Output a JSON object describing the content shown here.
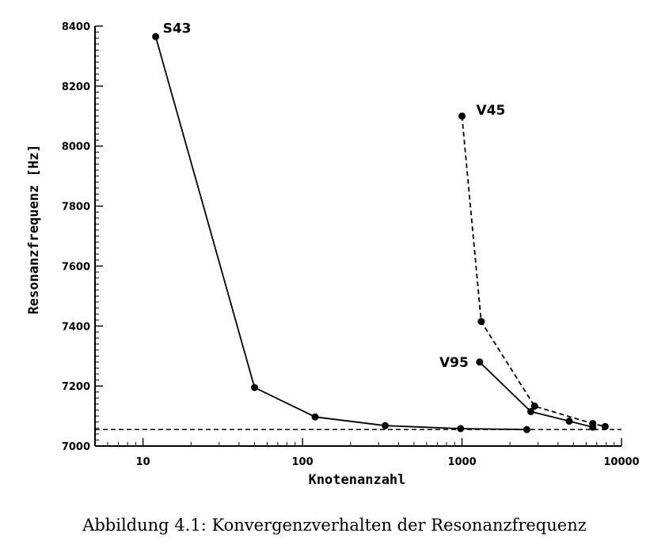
{
  "chart_data": {
    "type": "line",
    "xlabel": "Knotenanzahl",
    "ylabel": "Resonanzfrequenz [Hz]",
    "xscale": "log",
    "xlim": [
      5,
      10000
    ],
    "ylim": [
      7000,
      8400
    ],
    "x_ticks": [
      10,
      100,
      1000,
      10000
    ],
    "x_tick_labels": [
      "10",
      "100",
      "1000",
      "10000"
    ],
    "y_ticks": [
      7000,
      7200,
      7400,
      7600,
      7800,
      8000,
      8200,
      8400
    ],
    "y_tick_labels": [
      "7000",
      "7200",
      "7400",
      "7600",
      "7800",
      "8000",
      "8200",
      "8400"
    ],
    "grid": false,
    "series": [
      {
        "name": "S43",
        "line_style": "solid",
        "x": [
          12,
          50,
          120,
          330,
          980,
          2550
        ],
        "y": [
          8365,
          7195,
          7097,
          7068,
          7058,
          7055
        ]
      },
      {
        "name": "V45",
        "line_style": "dashed",
        "x": [
          1000,
          1320,
          2850,
          6600,
          7900
        ],
        "y": [
          8100,
          7415,
          7133,
          7075,
          7065
        ]
      },
      {
        "name": "V95",
        "line_style": "solid",
        "x": [
          1290,
          2700,
          4700,
          6600
        ],
        "y": [
          7280,
          7115,
          7083,
          7063
        ]
      }
    ],
    "reference_line": {
      "y": 7055,
      "line_style": "dashed"
    }
  },
  "caption": "Abbildung 4.1: Konvergenzverhalten der Resonanzfrequenz"
}
